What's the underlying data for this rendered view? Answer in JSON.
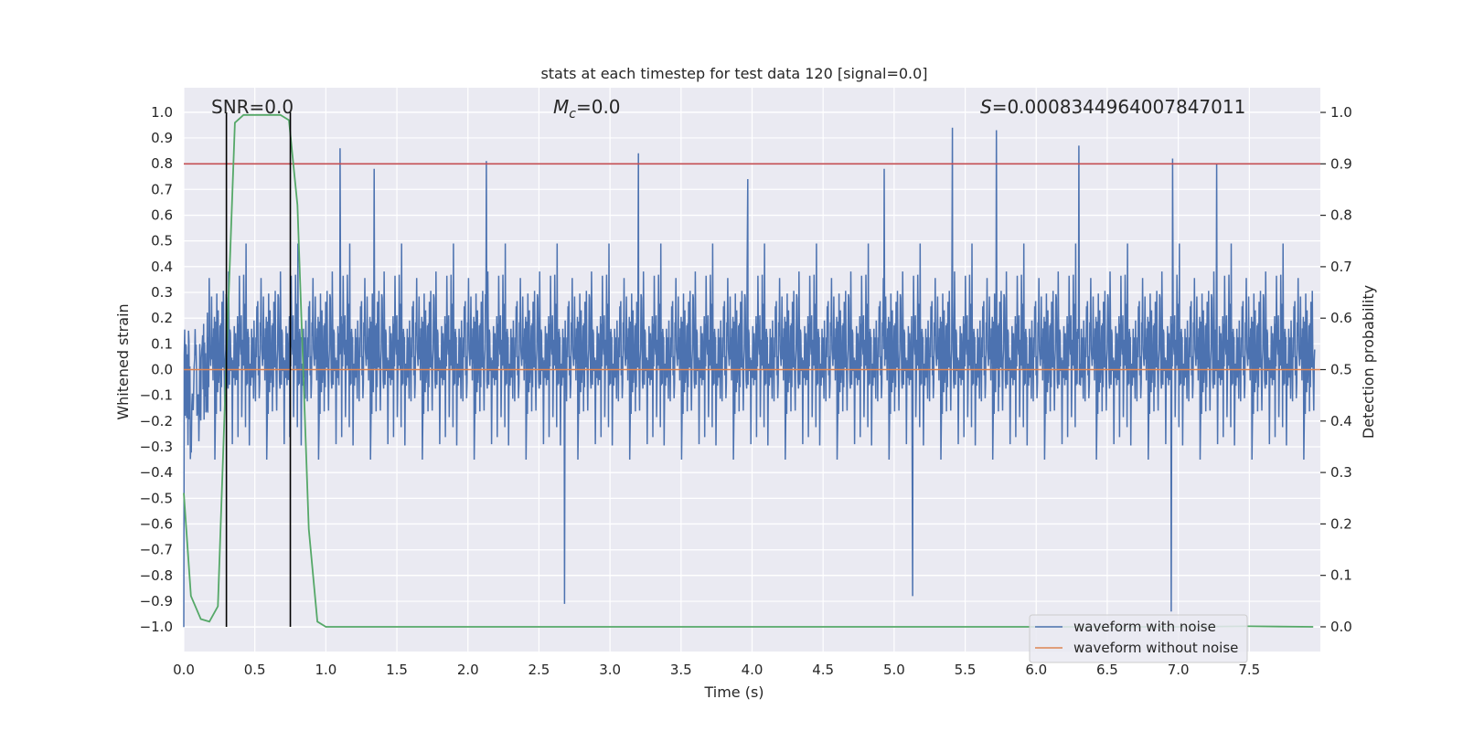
{
  "chart_data": {
    "type": "line",
    "title": "stats at each timestep for test data 120 [signal=0.0]",
    "xlabel": "Time (s)",
    "ylabel": "Whitened strain",
    "y2label": "Detection probability",
    "xlim": [
      0.0,
      8.0
    ],
    "ylim": [
      -1.095,
      1.095
    ],
    "y2lim": [
      -0.048,
      1.048
    ],
    "x_ticks": [
      0.0,
      0.5,
      1.0,
      1.5,
      2.0,
      2.5,
      3.0,
      3.5,
      4.0,
      4.5,
      5.0,
      5.5,
      6.0,
      6.5,
      7.0,
      7.5
    ],
    "x_tick_labels": [
      "0.0",
      "0.5",
      "1.0",
      "1.5",
      "2.0",
      "2.5",
      "3.0",
      "3.5",
      "4.0",
      "4.5",
      "5.0",
      "5.5",
      "6.0",
      "6.5",
      "7.0",
      "7.5"
    ],
    "y_ticks": [
      1.0,
      0.9,
      0.8,
      0.7,
      0.6,
      0.5,
      0.4,
      0.3,
      0.2,
      0.1,
      0.0,
      -0.1,
      -0.2,
      -0.3,
      -0.4,
      -0.5,
      -0.6,
      -0.7,
      -0.8,
      -0.9,
      -1.0
    ],
    "y_tick_labels": [
      "1.0",
      "0.9",
      "0.8",
      "0.7",
      "0.6",
      "0.5",
      "0.4",
      "0.3",
      "0.2",
      "0.1",
      "0.0",
      "−0.1",
      "−0.2",
      "−0.3",
      "−0.4",
      "−0.5",
      "−0.6",
      "−0.7",
      "−0.8",
      "−0.9",
      "−1.0"
    ],
    "y2_ticks": [
      1.0,
      0.9,
      0.8,
      0.7,
      0.6,
      0.5,
      0.4,
      0.3,
      0.2,
      0.1,
      0.0
    ],
    "y2_tick_labels": [
      "1.0",
      "0.9",
      "0.8",
      "0.7",
      "0.6",
      "0.5",
      "0.4",
      "0.3",
      "0.2",
      "0.1",
      "0.0"
    ],
    "grid": true,
    "legend_position": "lower-right",
    "annotations": {
      "snr": "SNR=0.0",
      "mc_symbol": "M",
      "mc_sub": "c",
      "mc_value": "=0.0",
      "s_symbol": "S",
      "s_value": "=0.0008344964007847011"
    },
    "series": [
      {
        "name": "waveform with noise",
        "color": "#4c72b0",
        "axis": "left",
        "description_of_samples": "whitened noise sampled densely over 0–8 s, bulk within ±0.35, peaks up to about ±0.95",
        "peaks": [
          {
            "x": 0.0,
            "y": -1.0
          },
          {
            "x": 1.1,
            "y": 0.86
          },
          {
            "x": 1.34,
            "y": 0.78
          },
          {
            "x": 2.13,
            "y": 0.81
          },
          {
            "x": 3.2,
            "y": 0.84
          },
          {
            "x": 3.97,
            "y": 0.74
          },
          {
            "x": 4.93,
            "y": 0.78
          },
          {
            "x": 5.41,
            "y": 0.94
          },
          {
            "x": 5.72,
            "y": 0.93
          },
          {
            "x": 6.3,
            "y": 0.87
          },
          {
            "x": 6.96,
            "y": 0.82
          },
          {
            "x": 7.27,
            "y": 0.8
          },
          {
            "x": 2.68,
            "y": -0.91
          },
          {
            "x": 5.13,
            "y": -0.88
          },
          {
            "x": 6.95,
            "y": -0.94
          }
        ]
      },
      {
        "name": "waveform without noise",
        "color": "#dd8452",
        "axis": "left",
        "x": [
          0.0,
          8.0
        ],
        "y": [
          0.0,
          0.0
        ]
      },
      {
        "name": "",
        "color": "#55a868",
        "axis": "right",
        "x": [
          0.0,
          0.05,
          0.12,
          0.18,
          0.24,
          0.3,
          0.36,
          0.42,
          0.5,
          0.58,
          0.68,
          0.74,
          0.8,
          0.88,
          0.94,
          1.0,
          2.0,
          3.0,
          4.0,
          5.0,
          6.0,
          7.0,
          7.5,
          7.95
        ],
        "y": [
          0.26,
          0.06,
          0.015,
          0.01,
          0.04,
          0.52,
          0.98,
          0.995,
          0.995,
          0.995,
          0.995,
          0.985,
          0.82,
          0.19,
          0.01,
          0.0,
          0.0,
          0.0,
          0.0,
          0.0,
          0.0,
          0.0,
          0.001,
          0.0
        ]
      }
    ],
    "hlines_right_axis": [
      {
        "y": 0.9,
        "color": "#c44e52"
      }
    ],
    "vlines": [
      {
        "x": 0.3,
        "color": "#000000"
      },
      {
        "x": 0.75,
        "color": "#000000"
      }
    ]
  },
  "colors": {
    "axes_bg": "#eaeaf2",
    "grid": "#ffffff",
    "noise": "#4c72b0",
    "clean": "#dd8452",
    "prob": "#55a868",
    "threshold": "#c44e52",
    "vline": "#000000"
  }
}
